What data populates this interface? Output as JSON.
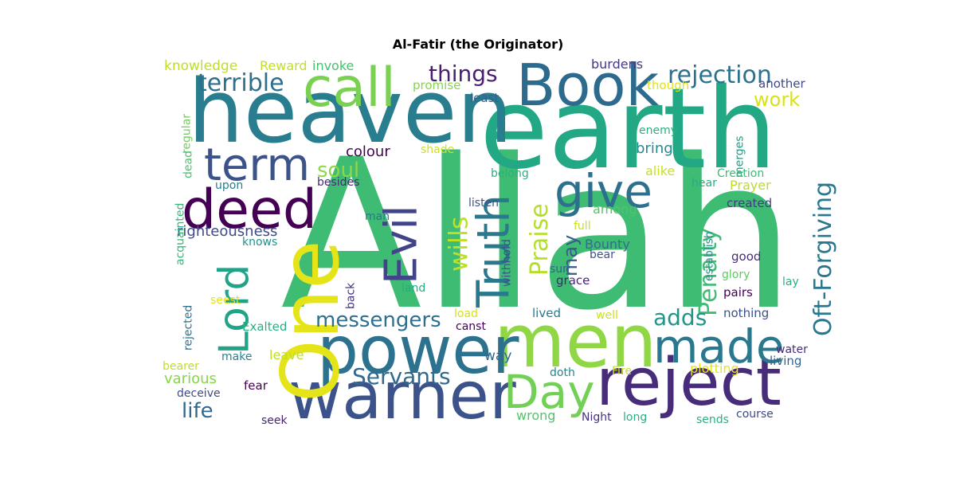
{
  "title": "Al-Fatir (the Originator)",
  "word_cloud": [
    {
      "text": "Allah",
      "color": "#3fbc73",
      "vertical": false
    },
    {
      "text": "earth",
      "color": "#22a884",
      "vertical": false
    },
    {
      "text": "heaven",
      "color": "#287d8e",
      "vertical": false
    },
    {
      "text": "Book",
      "color": "#2c6b8e",
      "vertical": false
    },
    {
      "text": "men",
      "color": "#8fd744",
      "vertical": false
    },
    {
      "text": "warner",
      "color": "#3b528b",
      "vertical": false
    },
    {
      "text": "reject",
      "color": "#472c7a",
      "vertical": false
    },
    {
      "text": "power",
      "color": "#2c728e",
      "vertical": false
    },
    {
      "text": "One",
      "color": "#e5e419",
      "vertical": true
    },
    {
      "text": "Day",
      "color": "#73d056",
      "vertical": false
    },
    {
      "text": "deed",
      "color": "#440154",
      "vertical": false
    },
    {
      "text": "call",
      "color": "#7ad151",
      "vertical": false
    },
    {
      "text": "made",
      "color": "#2a788e",
      "vertical": false
    },
    {
      "text": "give",
      "color": "#2d708e",
      "vertical": false
    },
    {
      "text": "term",
      "color": "#3b528b",
      "vertical": false
    },
    {
      "text": "Lord",
      "color": "#20a386",
      "vertical": true
    },
    {
      "text": "Evil",
      "color": "#414487",
      "vertical": true
    },
    {
      "text": "Truth",
      "color": "#2a788e",
      "vertical": true
    },
    {
      "text": "rejection",
      "color": "#2c728e",
      "vertical": false
    },
    {
      "text": "Oft-Forgiving",
      "color": "#2a788e",
      "vertical": true
    },
    {
      "text": "terrible",
      "color": "#2d708e",
      "vertical": false
    },
    {
      "text": "things",
      "color": "#481f70",
      "vertical": false
    },
    {
      "text": "Servants",
      "color": "#31688e",
      "vertical": false
    },
    {
      "text": "messengers",
      "color": "#2e6e8e",
      "vertical": false
    },
    {
      "text": "wills",
      "color": "#bddf26",
      "vertical": true
    },
    {
      "text": "Praise",
      "color": "#b5de2b",
      "vertical": true
    },
    {
      "text": "Penalty",
      "color": "#3fbc73",
      "vertical": true
    },
    {
      "text": "adds",
      "color": "#1f958b",
      "vertical": false
    },
    {
      "text": "life",
      "color": "#31688e",
      "vertical": false
    },
    {
      "text": "soul",
      "color": "#8fd744",
      "vertical": false
    },
    {
      "text": "work",
      "color": "#d8e219",
      "vertical": false
    },
    {
      "text": "may",
      "color": "#375b8d",
      "vertical": true
    },
    {
      "text": "righteousness",
      "color": "#3e4a89",
      "vertical": false
    },
    {
      "text": "knowledge",
      "color": "#bddf26",
      "vertical": false
    },
    {
      "text": "Reward",
      "color": "#c2df23",
      "vertical": false
    },
    {
      "text": "invoke",
      "color": "#48c16e",
      "vertical": false
    },
    {
      "text": "burdens",
      "color": "#453781",
      "vertical": false
    },
    {
      "text": "promise",
      "color": "#86d549",
      "vertical": false
    },
    {
      "text": "least",
      "color": "#355f8d",
      "vertical": false
    },
    {
      "text": "though",
      "color": "#dde318",
      "vertical": false
    },
    {
      "text": "another",
      "color": "#3e4989",
      "vertical": false
    },
    {
      "text": "enemy",
      "color": "#2ab07f",
      "vertical": false
    },
    {
      "text": "merges",
      "color": "#1fa188",
      "vertical": true
    },
    {
      "text": "bring",
      "color": "#23898e",
      "vertical": false
    },
    {
      "text": "colour",
      "color": "#440154",
      "vertical": false
    },
    {
      "text": "shade",
      "color": "#d0e11c",
      "vertical": false
    },
    {
      "text": "belong",
      "color": "#2ab07f",
      "vertical": false
    },
    {
      "text": "alike",
      "color": "#cae11f",
      "vertical": false
    },
    {
      "text": "Creation",
      "color": "#3cbb75",
      "vertical": false
    },
    {
      "text": "hear",
      "color": "#26ad81",
      "vertical": false
    },
    {
      "text": "Prayer",
      "color": "#bade28",
      "vertical": false
    },
    {
      "text": "created",
      "color": "#443983",
      "vertical": false
    },
    {
      "text": "among",
      "color": "#52c569",
      "vertical": false
    },
    {
      "text": "besides",
      "color": "#482878",
      "vertical": false
    },
    {
      "text": "listen",
      "color": "#3b528b",
      "vertical": false
    },
    {
      "text": "upon",
      "color": "#287d8e",
      "vertical": false
    },
    {
      "text": "man",
      "color": "#2a788e",
      "vertical": false
    },
    {
      "text": "full",
      "color": "#c8e020",
      "vertical": false
    },
    {
      "text": "withhold",
      "color": "#3b528b",
      "vertical": true
    },
    {
      "text": "Bounty",
      "color": "#2e6e8e",
      "vertical": false
    },
    {
      "text": "establish",
      "color": "#21918c",
      "vertical": true
    },
    {
      "text": "good",
      "color": "#472d7b",
      "vertical": false
    },
    {
      "text": "glory",
      "color": "#5ec962",
      "vertical": false
    },
    {
      "text": "bear",
      "color": "#3a548c",
      "vertical": false
    },
    {
      "text": "sun",
      "color": "#33638d",
      "vertical": false
    },
    {
      "text": "grace",
      "color": "#482475",
      "vertical": false
    },
    {
      "text": "pairs",
      "color": "#440154",
      "vertical": false
    },
    {
      "text": "lay",
      "color": "#2ab07f",
      "vertical": false
    },
    {
      "text": "knows",
      "color": "#21918c",
      "vertical": false
    },
    {
      "text": "acquainted",
      "color": "#34b679",
      "vertical": true
    },
    {
      "text": "regular",
      "color": "#6ece58",
      "vertical": true
    },
    {
      "text": "dead",
      "color": "#4ac16d",
      "vertical": true
    },
    {
      "text": "back",
      "color": "#46337e",
      "vertical": true
    },
    {
      "text": "land",
      "color": "#26ad81",
      "vertical": false
    },
    {
      "text": "seest",
      "color": "#e2e418",
      "vertical": false
    },
    {
      "text": "load",
      "color": "#d5e21a",
      "vertical": false
    },
    {
      "text": "lived",
      "color": "#2a788e",
      "vertical": false
    },
    {
      "text": "well",
      "color": "#d0e11c",
      "vertical": false
    },
    {
      "text": "nothing",
      "color": "#3b528b",
      "vertical": false
    },
    {
      "text": "rejected",
      "color": "#2d708e",
      "vertical": true
    },
    {
      "text": "Exalted",
      "color": "#2ab07f",
      "vertical": false
    },
    {
      "text": "canst",
      "color": "#440154",
      "vertical": false
    },
    {
      "text": "way",
      "color": "#31688e",
      "vertical": false
    },
    {
      "text": "water",
      "color": "#472d7b",
      "vertical": false
    },
    {
      "text": "living",
      "color": "#33638d",
      "vertical": false
    },
    {
      "text": "make",
      "color": "#26828e",
      "vertical": false
    },
    {
      "text": "leave",
      "color": "#bddf26",
      "vertical": false
    },
    {
      "text": "bearer",
      "color": "#bddf26",
      "vertical": false
    },
    {
      "text": "various",
      "color": "#86d549",
      "vertical": false
    },
    {
      "text": "doth",
      "color": "#25848e",
      "vertical": false
    },
    {
      "text": "Fire",
      "color": "#c8e020",
      "vertical": false
    },
    {
      "text": "plotting",
      "color": "#e5e419",
      "vertical": false
    },
    {
      "text": "deceive",
      "color": "#3e4a89",
      "vertical": false
    },
    {
      "text": "fear",
      "color": "#440154",
      "vertical": false
    },
    {
      "text": "wrong",
      "color": "#52c569",
      "vertical": false
    },
    {
      "text": "Night",
      "color": "#46337e",
      "vertical": false
    },
    {
      "text": "long",
      "color": "#2ab07f",
      "vertical": false
    },
    {
      "text": "seek",
      "color": "#482475",
      "vertical": false
    },
    {
      "text": "sends",
      "color": "#2ab07f",
      "vertical": false
    },
    {
      "text": "course",
      "color": "#3e4a89",
      "vertical": false
    }
  ]
}
